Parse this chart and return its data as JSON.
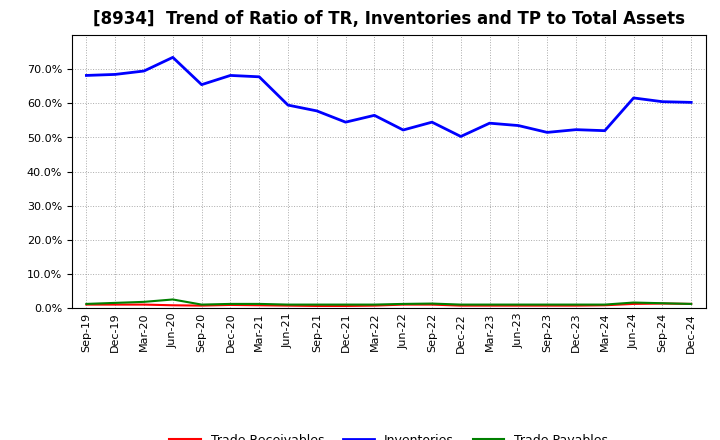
{
  "title": "[8934]  Trend of Ratio of TR, Inventories and TP to Total Assets",
  "x_labels": [
    "Sep-19",
    "Dec-19",
    "Mar-20",
    "Jun-20",
    "Sep-20",
    "Dec-20",
    "Mar-21",
    "Jun-21",
    "Sep-21",
    "Dec-21",
    "Mar-22",
    "Jun-22",
    "Sep-22",
    "Dec-22",
    "Mar-23",
    "Jun-23",
    "Sep-23",
    "Dec-23",
    "Mar-24",
    "Jun-24",
    "Sep-24",
    "Dec-24"
  ],
  "inventories": [
    0.682,
    0.685,
    0.695,
    0.735,
    0.655,
    0.682,
    0.678,
    0.595,
    0.578,
    0.545,
    0.565,
    0.522,
    0.545,
    0.503,
    0.542,
    0.535,
    0.515,
    0.523,
    0.52,
    0.616,
    0.605,
    0.603
  ],
  "trade_receivables": [
    0.01,
    0.01,
    0.01,
    0.008,
    0.007,
    0.009,
    0.008,
    0.007,
    0.006,
    0.006,
    0.007,
    0.01,
    0.01,
    0.007,
    0.007,
    0.007,
    0.007,
    0.007,
    0.008,
    0.012,
    0.013,
    0.012
  ],
  "trade_payables": [
    0.012,
    0.015,
    0.018,
    0.025,
    0.01,
    0.012,
    0.012,
    0.01,
    0.01,
    0.01,
    0.01,
    0.012,
    0.013,
    0.01,
    0.01,
    0.01,
    0.01,
    0.01,
    0.01,
    0.016,
    0.014,
    0.012
  ],
  "ylim": [
    0.0,
    0.8
  ],
  "yticks": [
    0.0,
    0.1,
    0.2,
    0.3,
    0.4,
    0.5,
    0.6,
    0.7
  ],
  "color_inventories": "#0000FF",
  "color_trade_receivables": "#FF0000",
  "color_trade_payables": "#008000",
  "background_color": "#FFFFFF",
  "grid_color": "#AAAAAA",
  "title_fontsize": 12,
  "legend_fontsize": 9,
  "axis_fontsize": 8
}
